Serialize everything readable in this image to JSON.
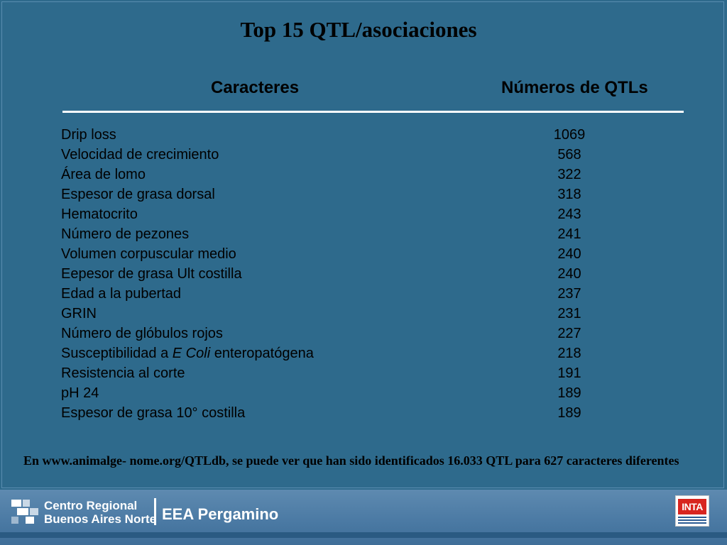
{
  "title": "Top 15 QTL/asociaciones",
  "headers": {
    "characters": "Caracteres",
    "count": "Números de QTLs"
  },
  "rows": [
    {
      "name": "Drip loss",
      "value": "1069"
    },
    {
      "name": "Velocidad de crecimiento",
      "value": "568"
    },
    {
      "name": "Área de lomo",
      "value": "322"
    },
    {
      "name": "Espesor de grasa dorsal",
      "value": "318"
    },
    {
      "name": "Hematocrito",
      "value": "243"
    },
    {
      "name": "Número de pezones",
      "value": "241"
    },
    {
      "name": "Volumen corpuscular medio",
      "value": "240"
    },
    {
      "name": "Eepesor de grasa Ult costilla",
      "value": "240"
    },
    {
      "name": "Edad a la pubertad",
      "value": "237"
    },
    {
      "name": "GRIN",
      "value": "231"
    },
    {
      "name": "Número de glóbulos rojos",
      "value": "227"
    },
    {
      "name_pre": "Susceptibilidad a ",
      "name_italic": "E Coli",
      "name_post": " enteropatógena",
      "value": "218"
    },
    {
      "name": "Resistencia al corte",
      "value": "191"
    },
    {
      "name": "pH 24",
      "value": "189"
    },
    {
      "name": "Espesor de grasa 10° costilla",
      "value": "189"
    }
  ],
  "note": "En www.animalge- nome.org/QTLdb, se puede ver que han sido identificados 16.033  QTL para 627 caracteres diferentes",
  "footer": {
    "logo_line1": "Centro Regional",
    "logo_line2": "Buenos Aires Norte",
    "unit": "EEA Pergamino",
    "inta": "INTA"
  },
  "colors": {
    "background": "#2e6a8c",
    "rule": "#ffffff",
    "inta_red": "#d8241f"
  }
}
